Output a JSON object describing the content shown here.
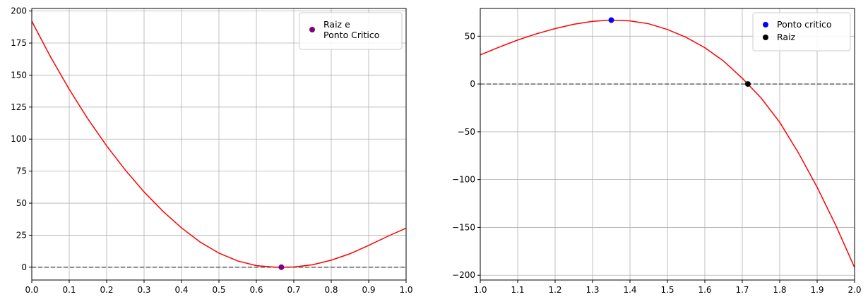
{
  "chart_data": [
    {
      "type": "line",
      "title": "",
      "xlabel": "",
      "ylabel": "",
      "xlim": [
        0,
        1
      ],
      "ylim": [
        -10,
        202
      ],
      "xticks": [
        0,
        0.1,
        0.2,
        0.3,
        0.4,
        0.5,
        0.6,
        0.7,
        0.8,
        0.9,
        1.0
      ],
      "xtick_labels": [
        "0.0",
        "0.1",
        "0.2",
        "0.3",
        "0.4",
        "0.5",
        "0.6",
        "0.7",
        "0.8",
        "0.9",
        "1.0"
      ],
      "yticks": [
        0,
        25,
        50,
        75,
        100,
        125,
        150,
        175,
        200
      ],
      "ytick_labels": [
        "0",
        "25",
        "50",
        "75",
        "100",
        "125",
        "150",
        "175",
        "200"
      ],
      "grid": true,
      "legend_position": "top-right",
      "curve": {
        "color": "#ff0000",
        "x": [
          0.0,
          0.05,
          0.1,
          0.15,
          0.2,
          0.25,
          0.3,
          0.35,
          0.4,
          0.45,
          0.5,
          0.55,
          0.6,
          0.65,
          0.6667,
          0.7,
          0.75,
          0.8,
          0.85,
          0.9,
          0.95,
          1.0
        ],
        "y": [
          192,
          164.3,
          138.9,
          115.7,
          94.7,
          75.8,
          58.8,
          43.8,
          30.7,
          19.6,
          11.0,
          4.9,
          1.2,
          0.05,
          0.0,
          0.2,
          1.9,
          5.5,
          10.5,
          17.0,
          24.0,
          30.5
        ]
      },
      "baseline": {
        "y": 0,
        "style": "dashed",
        "color": "#666666"
      },
      "points": [
        {
          "x": 0.6667,
          "y": 0,
          "color": "#800080",
          "label_lines": [
            "Raiz e",
            "Ponto Critico"
          ]
        }
      ]
    },
    {
      "type": "line",
      "title": "",
      "xlabel": "",
      "ylabel": "",
      "xlim": [
        1,
        2
      ],
      "ylim": [
        -205,
        79
      ],
      "xticks": [
        1.0,
        1.1,
        1.2,
        1.3,
        1.4,
        1.5,
        1.6,
        1.7,
        1.8,
        1.9,
        2.0
      ],
      "xtick_labels": [
        "1.0",
        "1.1",
        "1.2",
        "1.3",
        "1.4",
        "1.5",
        "1.6",
        "1.7",
        "1.8",
        "1.9",
        "2.0"
      ],
      "yticks": [
        -200,
        -150,
        -100,
        -50,
        0,
        50
      ],
      "ytick_labels": [
        "−200",
        "−150",
        "−100",
        "−50",
        "0",
        "50"
      ],
      "grid": true,
      "legend_position": "top-right",
      "curve": {
        "color": "#ff0000",
        "x": [
          1.0,
          1.05,
          1.1,
          1.15,
          1.2,
          1.25,
          1.3,
          1.35,
          1.4,
          1.45,
          1.5,
          1.55,
          1.6,
          1.65,
          1.7,
          1.75,
          1.8,
          1.85,
          1.9,
          1.95,
          2.0
        ],
        "y": [
          30.5,
          38.5,
          46.0,
          52.5,
          58.0,
          62.5,
          65.5,
          66.8,
          66.0,
          63.0,
          57.0,
          48.8,
          38.0,
          24.0,
          6.0,
          -14.5,
          -40.0,
          -72.0,
          -108.0,
          -148.0,
          -192.0
        ]
      },
      "baseline": {
        "y": 0,
        "style": "dashed",
        "color": "#666666"
      },
      "points": [
        {
          "x": 1.35,
          "y": 66.8,
          "color": "#0000ff",
          "label_lines": [
            "Ponto critico"
          ]
        },
        {
          "x": 1.715,
          "y": 0,
          "color": "#000000",
          "label_lines": [
            "Raiz"
          ]
        }
      ]
    }
  ]
}
